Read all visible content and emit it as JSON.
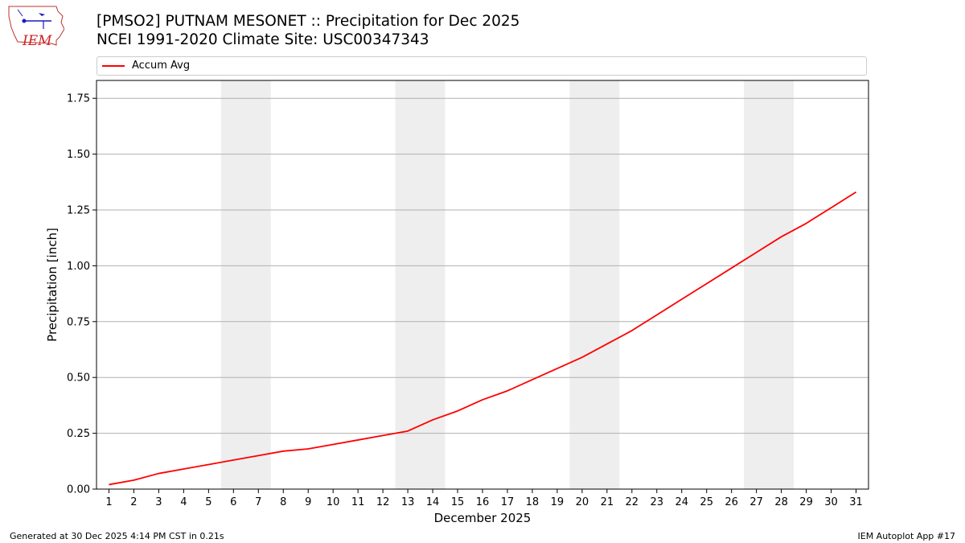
{
  "header": {
    "title_line1": "[PMSO2] PUTNAM MESONET :: Precipitation for Dec 2025",
    "title_line2": "NCEI 1991-2020 Climate Site: USC00347343"
  },
  "logo": {
    "text": "IEM",
    "icon": "iem-iowa-state-logo-icon"
  },
  "footer": {
    "left": "Generated at 30 Dec 2025 4:14 PM CST in 0.21s",
    "right": "IEM Autoplot App #17"
  },
  "colors": {
    "series": "#ff0000",
    "weekend_shade": "#eeeeee",
    "grid": "#b0b0b0"
  },
  "chart_data": {
    "type": "line",
    "xlabel": "December 2025",
    "ylabel": "Precipitation [inch]",
    "x": [
      1,
      2,
      3,
      4,
      5,
      6,
      7,
      8,
      9,
      10,
      11,
      12,
      13,
      14,
      15,
      16,
      17,
      18,
      19,
      20,
      21,
      22,
      23,
      24,
      25,
      26,
      27,
      28,
      29,
      30,
      31
    ],
    "xlim": [
      0.5,
      31.5
    ],
    "ylim": [
      0,
      1.83
    ],
    "yticks": [
      "0.00",
      "0.25",
      "0.50",
      "0.75",
      "1.00",
      "1.25",
      "1.50",
      "1.75"
    ],
    "grid": "horizontal",
    "legend": "top",
    "shaded_days": [
      [
        6,
        7
      ],
      [
        13,
        14
      ],
      [
        20,
        21
      ],
      [
        27,
        28
      ]
    ],
    "series": [
      {
        "name": "Accum Avg",
        "values": [
          0.02,
          0.04,
          0.07,
          0.09,
          0.11,
          0.13,
          0.15,
          0.17,
          0.18,
          0.2,
          0.22,
          0.24,
          0.26,
          0.31,
          0.35,
          0.4,
          0.44,
          0.49,
          0.54,
          0.59,
          0.65,
          0.71,
          0.78,
          0.85,
          0.92,
          0.99,
          1.06,
          1.13,
          1.19,
          1.26,
          1.33
        ]
      }
    ]
  }
}
